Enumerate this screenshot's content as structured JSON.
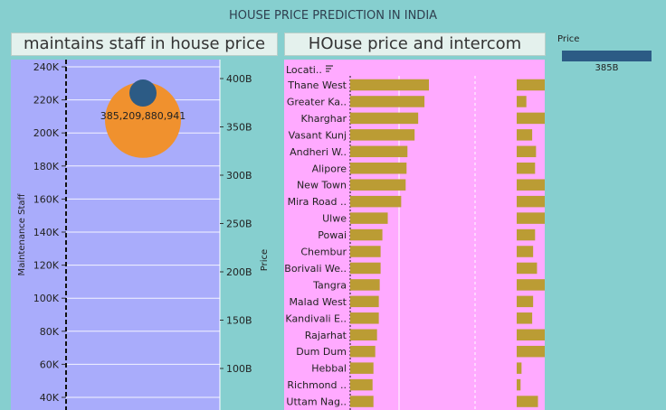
{
  "dashboard": {
    "title": "HOUSE PRICE PREDICTION IN INDIA"
  },
  "legend": {
    "title": "Price",
    "value": "385B",
    "color": "#2c5b85"
  },
  "colors": {
    "page_bg": "#86cfcf",
    "left_plot_bg": "#a9acfb",
    "right_plot_bg": "#ffaaff",
    "bar": "#bb9c34",
    "big_circle": "#f0912e",
    "small_circle": "#2c5b85"
  },
  "chart_data": [
    {
      "type": "scatter",
      "title": "maintains staff in house price",
      "ylabel_left": "Maintenance Staff",
      "ylabel_right": "Price",
      "left_axis": {
        "min": 30000,
        "max": 245000,
        "ticks": [
          40000,
          60000,
          80000,
          100000,
          120000,
          140000,
          160000,
          180000,
          200000,
          220000,
          240000
        ],
        "tick_labels": [
          "40K",
          "60K",
          "80K",
          "100K",
          "120K",
          "140K",
          "160K",
          "180K",
          "200K",
          "220K",
          "240K"
        ]
      },
      "right_axis": {
        "min": 75000000000,
        "max": 420000000000,
        "ticks": [
          100000000000,
          150000000000,
          200000000000,
          250000000000,
          300000000000,
          350000000000,
          400000000000
        ],
        "tick_labels": [
          "100B",
          "150B",
          "200B",
          "250B",
          "300B",
          "350B",
          "400B"
        ]
      },
      "points": [
        {
          "series": "Maintenance Staff",
          "y": 207880,
          "size": 34,
          "color": "#f0912e"
        },
        {
          "series": "Price",
          "y": 385000000000,
          "size": 11,
          "color": "#2c5b85"
        }
      ],
      "label": "385,209,880,941"
    },
    {
      "type": "bar",
      "title": "HOuse price and intercom",
      "header_label": "Locati..",
      "categories": [
        "Thane West",
        "Greater Ka..",
        "Kharghar",
        "Vasant Kunj",
        "Andheri W..",
        "Alipore",
        "New Town",
        "Mira Road ..",
        "Ulwe",
        "Powai",
        "Chembur",
        "Borivali We..",
        "Tangra",
        "Malad West",
        "Kandivali E..",
        "Rajarhat",
        "Dum Dum",
        "Hebbal",
        "Richmond ..",
        "Uttam Nag.."
      ],
      "values": [
        88,
        83,
        76,
        72,
        64,
        63,
        62,
        57,
        42,
        36,
        34,
        34,
        33,
        32,
        32,
        30,
        28,
        26,
        25,
        26
      ],
      "values_col2": [
        29,
        10,
        29,
        16,
        20,
        19,
        29,
        29,
        29,
        19,
        17,
        21,
        29,
        17,
        16,
        29,
        29,
        5,
        4,
        22
      ]
    }
  ]
}
